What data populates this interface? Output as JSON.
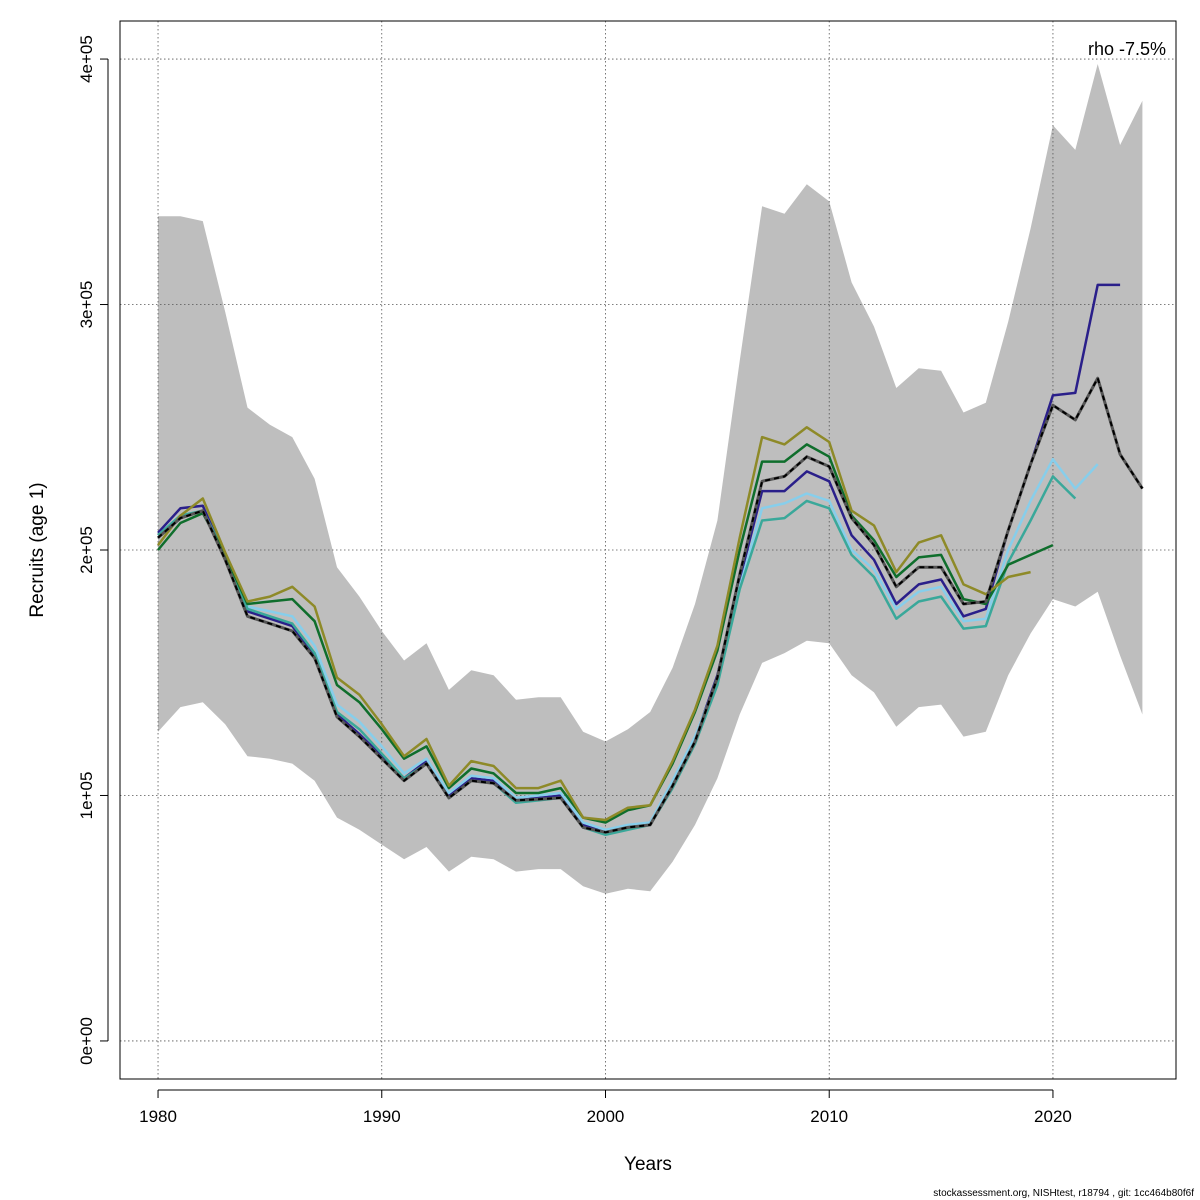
{
  "chart_data": {
    "type": "line",
    "xlabel": "Years",
    "ylabel": "Recruits (age 1)",
    "annotation": "rho -7.5%",
    "footer": "stockassessment.org, NISHtest, r18794 , git: 1cc464b80f6f",
    "xlim": [
      1978.3,
      2025.5
    ],
    "ylim": [
      -15500,
      415500
    ],
    "x_ticks": [
      1980,
      1990,
      2000,
      2010,
      2020
    ],
    "x_tick_labels": [
      "1980",
      "1990",
      "2000",
      "2010",
      "2020"
    ],
    "y_ticks": [
      0,
      100000,
      200000,
      300000,
      400000
    ],
    "y_tick_labels": [
      "0e+00",
      "1e+05",
      "2e+05",
      "3e+05",
      "4e+05"
    ],
    "grid": true,
    "confidence_band": {
      "color": "#bebebe",
      "x": [
        1980,
        1981,
        1982,
        1983,
        1984,
        1985,
        1986,
        1987,
        1988,
        1989,
        1990,
        1991,
        1992,
        1993,
        1994,
        1995,
        1996,
        1997,
        1998,
        1999,
        2000,
        2001,
        2002,
        2003,
        2004,
        2005,
        2006,
        2007,
        2008,
        2009,
        2010,
        2011,
        2012,
        2013,
        2014,
        2015,
        2016,
        2017,
        2018,
        2019,
        2020,
        2021,
        2022,
        2023,
        2024
      ],
      "upper": [
        336000,
        336000,
        334000,
        297000,
        258000,
        251000,
        246000,
        229000,
        193000,
        181000,
        167000,
        155000,
        162000,
        143000,
        151000,
        149000,
        139000,
        140000,
        140000,
        126000,
        122000,
        127000,
        134000,
        152000,
        178000,
        212000,
        277000,
        340000,
        337000,
        349000,
        342000,
        309000,
        291000,
        266000,
        274000,
        273000,
        256000,
        260000,
        293000,
        331000,
        373000,
        363000,
        398000,
        365000,
        383000
      ],
      "lower": [
        126000,
        136000,
        138000,
        129000,
        116000,
        115000,
        113000,
        106000,
        91000,
        86000,
        80000,
        74000,
        79000,
        69000,
        75000,
        74000,
        69000,
        70000,
        70000,
        63000,
        60000,
        62000,
        61000,
        73000,
        88000,
        107000,
        133000,
        154000,
        158000,
        163000,
        162000,
        149000,
        142000,
        128000,
        136000,
        137000,
        124000,
        126000,
        149000,
        166000,
        180000,
        177000,
        183000,
        157000,
        133000
      ]
    },
    "series": [
      {
        "color": "#000000",
        "dashed": true,
        "halo": "#555555",
        "x": [
          1980,
          1981,
          1982,
          1983,
          1984,
          1985,
          1986,
          1987,
          1988,
          1989,
          1990,
          1991,
          1992,
          1993,
          1994,
          1995,
          1996,
          1997,
          1998,
          1999,
          2000,
          2001,
          2002,
          2003,
          2004,
          2005,
          2006,
          2007,
          2008,
          2009,
          2010,
          2011,
          2012,
          2013,
          2014,
          2015,
          2016,
          2017,
          2018,
          2019,
          2020,
          2021,
          2022,
          2023,
          2024
        ],
        "values": [
          205000,
          213000,
          216000,
          196000,
          173000,
          170000,
          167000,
          156000,
          132000,
          124000,
          115000,
          106000,
          113000,
          99000,
          106000,
          105000,
          98000,
          98500,
          99000,
          87000,
          85000,
          87000,
          88000,
          104000,
          122000,
          148000,
          190000,
          228000,
          230000,
          238000,
          234000,
          213000,
          202000,
          185000,
          193000,
          193000,
          178000,
          179000,
          208000,
          235000,
          259000,
          253000,
          270000,
          239000,
          225000
        ]
      },
      {
        "color": "#2a1f8a",
        "x": [
          1980,
          1981,
          1982,
          1983,
          1984,
          1985,
          1986,
          1987,
          1988,
          1989,
          1990,
          1991,
          1992,
          1993,
          1994,
          1995,
          1996,
          1997,
          1998,
          1999,
          2000,
          2001,
          2002,
          2003,
          2004,
          2005,
          2006,
          2007,
          2008,
          2009,
          2010,
          2011,
          2012,
          2013,
          2014,
          2015,
          2016,
          2017,
          2018,
          2019,
          2020,
          2021,
          2022,
          2023
        ],
        "values": [
          207000,
          217000,
          218000,
          197000,
          175000,
          172000,
          169000,
          157000,
          133000,
          125000,
          116000,
          107000,
          114000,
          100000,
          107000,
          106000,
          98000,
          99000,
          100000,
          88000,
          85000,
          87000,
          89000,
          104000,
          123000,
          149000,
          188000,
          224000,
          224000,
          232000,
          228000,
          206000,
          196000,
          178000,
          186000,
          188000,
          173000,
          176000,
          208000,
          235000,
          263000,
          264000,
          308000,
          308000
        ]
      },
      {
        "color": "#87ceeb",
        "x": [
          1980,
          1981,
          1982,
          1983,
          1984,
          1985,
          1986,
          1987,
          1988,
          1989,
          1990,
          1991,
          1992,
          1993,
          1994,
          1995,
          1996,
          1997,
          1998,
          1999,
          2000,
          2001,
          2002,
          2003,
          2004,
          2005,
          2006,
          2007,
          2008,
          2009,
          2010,
          2011,
          2012,
          2013,
          2014,
          2015,
          2016,
          2017,
          2018,
          2019,
          2020,
          2021,
          2022
        ],
        "values": [
          206000,
          214000,
          216000,
          198000,
          177000,
          175000,
          173000,
          161000,
          137000,
          130000,
          120000,
          109000,
          115000,
          101000,
          108000,
          107000,
          99000,
          100000,
          101000,
          89000,
          86000,
          88000,
          89000,
          106000,
          124000,
          147000,
          185000,
          217000,
          219000,
          223000,
          220000,
          200000,
          192000,
          176000,
          183000,
          185000,
          171000,
          172000,
          200000,
          220000,
          237000,
          225000,
          235000
        ]
      },
      {
        "color": "#3aa89a",
        "x": [
          1980,
          1981,
          1982,
          1983,
          1984,
          1985,
          1986,
          1987,
          1988,
          1989,
          1990,
          1991,
          1992,
          1993,
          1994,
          1995,
          1996,
          1997,
          1998,
          1999,
          2000,
          2001,
          2002,
          2003,
          2004,
          2005,
          2006,
          2007,
          2008,
          2009,
          2010,
          2011,
          2012,
          2013,
          2014,
          2015,
          2016,
          2017,
          2018,
          2019,
          2020,
          2021
        ],
        "values": [
          206000,
          214000,
          216000,
          198000,
          176000,
          173000,
          170000,
          158000,
          134000,
          127000,
          117000,
          107000,
          113000,
          99000,
          106000,
          105000,
          97000,
          98000,
          99000,
          87000,
          84000,
          86000,
          88000,
          103000,
          121000,
          145000,
          184000,
          212000,
          213000,
          220000,
          217000,
          198000,
          189000,
          172000,
          179000,
          181000,
          168000,
          169000,
          195000,
          212000,
          230000,
          221000
        ]
      },
      {
        "color": "#0f6e2c",
        "x": [
          1980,
          1981,
          1982,
          1983,
          1984,
          1985,
          1986,
          1987,
          1988,
          1989,
          1990,
          1991,
          1992,
          1993,
          1994,
          1995,
          1996,
          1997,
          1998,
          1999,
          2000,
          2001,
          2002,
          2003,
          2004,
          2005,
          2006,
          2007,
          2008,
          2009,
          2010,
          2011,
          2012,
          2013,
          2014,
          2015,
          2016,
          2017,
          2018,
          2019,
          2020
        ],
        "values": [
          200000,
          211000,
          215000,
          198000,
          178000,
          179000,
          180000,
          171000,
          145000,
          138000,
          127000,
          115000,
          120000,
          103000,
          111000,
          109000,
          101000,
          101000,
          103000,
          91000,
          89000,
          94000,
          96000,
          113000,
          134000,
          159000,
          200000,
          236000,
          236000,
          243000,
          238000,
          214000,
          204000,
          189000,
          197000,
          198000,
          180000,
          178000,
          194000,
          198000,
          202000
        ]
      },
      {
        "color": "#8e8a28",
        "x": [
          1980,
          1981,
          1982,
          1983,
          1984,
          1985,
          1986,
          1987,
          1988,
          1989,
          1990,
          1991,
          1992,
          1993,
          1994,
          1995,
          1996,
          1997,
          1998,
          1999,
          2000,
          2001,
          2002,
          2003,
          2004,
          2005,
          2006,
          2007,
          2008,
          2009,
          2010,
          2011,
          2012,
          2013,
          2014,
          2015,
          2016,
          2017,
          2018,
          2019
        ],
        "values": [
          202000,
          214000,
          221000,
          199000,
          179000,
          181000,
          185000,
          177000,
          148000,
          141000,
          129000,
          116000,
          123000,
          104000,
          114000,
          112000,
          103000,
          103000,
          106000,
          91000,
          90000,
          95000,
          96000,
          114000,
          135000,
          161000,
          205000,
          246000,
          243000,
          250000,
          244000,
          216000,
          210000,
          191000,
          203000,
          206000,
          186000,
          182000,
          189000,
          191000
        ]
      }
    ]
  }
}
